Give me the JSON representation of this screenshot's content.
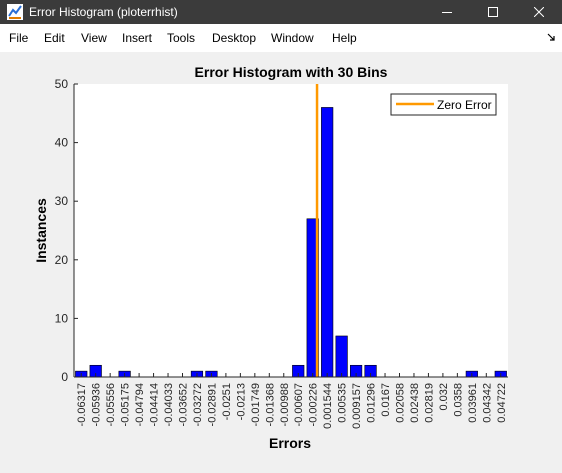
{
  "window": {
    "title": "Error Histogram (ploterrhist)",
    "icon": "matlab-figure-icon",
    "controls": [
      "minimize-icon",
      "maximize-icon",
      "close-icon"
    ]
  },
  "menubar": {
    "items": [
      {
        "label": "File"
      },
      {
        "label": "Edit"
      },
      {
        "label": "View"
      },
      {
        "label": "Insert"
      },
      {
        "label": "Tools"
      },
      {
        "label": "Desktop"
      },
      {
        "label": "Window"
      },
      {
        "label": "Help"
      }
    ],
    "dock_icon": "dock-arrow-icon"
  },
  "chart_data": {
    "type": "bar",
    "title": "Error Histogram with 30 Bins",
    "xlabel": "Errors",
    "ylabel": "Instances",
    "ylim": [
      0,
      50
    ],
    "yticks": [
      0,
      10,
      20,
      30,
      40,
      50
    ],
    "categories": [
      "-0.06317",
      "-0.05936",
      "-0.05556",
      "-0.05175",
      "-0.04794",
      "-0.04414",
      "-0.04033",
      "-0.03652",
      "-0.03272",
      "-0.02891",
      "-0.0251",
      "-0.0213",
      "-0.01749",
      "-0.01368",
      "-0.00988",
      "-0.00607",
      "-0.00226",
      "0.001544",
      "0.00535",
      "0.009157",
      "0.01296",
      "0.0167",
      "0.02058",
      "0.02438",
      "0.02819",
      "0.032",
      "0.0358",
      "0.03961",
      "0.04342",
      "0.04722"
    ],
    "series": [
      {
        "values": [
          1,
          2,
          0,
          1,
          0,
          0,
          0,
          0,
          1,
          1,
          0,
          0,
          0,
          0,
          0,
          2,
          27,
          46,
          7,
          2,
          2,
          0,
          0,
          0,
          0,
          0,
          0,
          1,
          0,
          1
        ],
        "color": "#0000ff"
      }
    ],
    "zero_error_line": {
      "label": "Zero Error",
      "bin_index": 16.8,
      "color": "#ff9900"
    },
    "legend": {
      "position": "top-right",
      "entries": [
        "Zero Error"
      ]
    },
    "grid": false
  }
}
